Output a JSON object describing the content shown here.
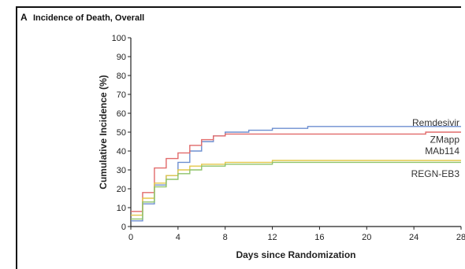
{
  "chart_data": {
    "type": "line",
    "step": true,
    "panel_letter": "A",
    "title": "Incidence of Death, Overall",
    "xlabel": "Days since Randomization",
    "ylabel": "Cumulative Incidence (%)",
    "xlim": [
      0,
      28
    ],
    "ylim": [
      0,
      100
    ],
    "xticks": [
      0,
      4,
      8,
      12,
      16,
      20,
      24,
      28
    ],
    "yticks": [
      0,
      10,
      20,
      30,
      40,
      50,
      60,
      70,
      80,
      90,
      100
    ],
    "grid": false,
    "series": [
      {
        "name": "Remdesivir",
        "color": "#6d8fd0",
        "points": [
          [
            0,
            3
          ],
          [
            1,
            12
          ],
          [
            2,
            22
          ],
          [
            3,
            27
          ],
          [
            4,
            34
          ],
          [
            5,
            40
          ],
          [
            6,
            45
          ],
          [
            7,
            48
          ],
          [
            8,
            50
          ],
          [
            10,
            51
          ],
          [
            12,
            52
          ],
          [
            15,
            53
          ],
          [
            20,
            53
          ],
          [
            28,
            53
          ]
        ]
      },
      {
        "name": "ZMapp",
        "color": "#e16a6a",
        "points": [
          [
            0,
            8
          ],
          [
            1,
            18
          ],
          [
            2,
            31
          ],
          [
            3,
            36
          ],
          [
            4,
            39
          ],
          [
            5,
            43
          ],
          [
            6,
            46
          ],
          [
            7,
            48
          ],
          [
            8,
            49
          ],
          [
            12,
            49
          ],
          [
            20,
            49
          ],
          [
            25,
            50
          ],
          [
            28,
            50
          ]
        ]
      },
      {
        "name": "MAb114",
        "color": "#e3c74a",
        "points": [
          [
            0,
            6
          ],
          [
            1,
            15
          ],
          [
            2,
            23
          ],
          [
            3,
            27
          ],
          [
            4,
            30
          ],
          [
            5,
            32
          ],
          [
            6,
            33
          ],
          [
            8,
            34
          ],
          [
            12,
            35
          ],
          [
            20,
            35
          ],
          [
            28,
            35
          ]
        ]
      },
      {
        "name": "REGN-EB3",
        "color": "#8fc36a",
        "points": [
          [
            0,
            4
          ],
          [
            1,
            13
          ],
          [
            2,
            21
          ],
          [
            3,
            25
          ],
          [
            4,
            28
          ],
          [
            5,
            30
          ],
          [
            6,
            32
          ],
          [
            8,
            33
          ],
          [
            12,
            34
          ],
          [
            20,
            34
          ],
          [
            28,
            34
          ]
        ]
      }
    ],
    "legend_labels": [
      {
        "text": "Remdesivir",
        "value": 55
      },
      {
        "text": "ZMapp",
        "value": 46
      },
      {
        "text": "MAb114",
        "value": 40
      },
      {
        "text": "REGN-EB3",
        "value": 28
      }
    ]
  }
}
